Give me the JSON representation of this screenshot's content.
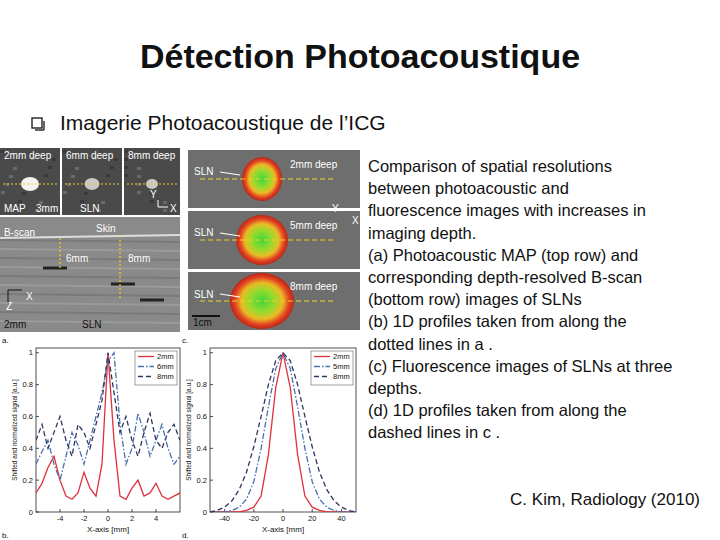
{
  "header": {
    "title": "Détection Photoacoustique"
  },
  "bullet": "Imagerie Photoacoustique de l’ICG",
  "caption": [
    "Comparison of spatial resolutions",
    "between photoacoustic and",
    "fluorescence images with increases in",
    "imaging depth.",
    "(a) Photoacoustic MAP (top row) and",
    "corresponding depth-resolved B-scan",
    "(bottom row) images of SLNs",
    "(b) 1D profiles taken from along the",
    "dotted lines in a .",
    "(c) Fluorescence images of SLNs at three",
    "depths.",
    "(d) 1D profiles taken from along the",
    "dashed lines in c ."
  ],
  "citation": "C. Kim, Radiology (2010)",
  "panel_a": {
    "labels": [
      "2mm deep",
      "6mm deep",
      "8mm deep",
      "MAP",
      "3mm",
      "SLN",
      "B-scan",
      "Skin",
      "6mm",
      "8mm",
      "2mm",
      "SLN",
      "Y",
      "X",
      "X",
      "Z"
    ]
  },
  "panel_c": {
    "labels": [
      "SLN",
      "2mm deep",
      "SLN",
      "5mm deep",
      "SLN",
      "8mm deep",
      "1cm",
      "Y",
      "X"
    ]
  },
  "panel_letters": [
    "a.",
    "b.",
    "c.",
    "d."
  ],
  "chart_data": [
    {
      "type": "line",
      "x_label": "X-axis [mm]",
      "y_label": "Shifted and normalized signal [a.u.]",
      "x": [
        -6,
        -5.5,
        -5,
        -4.5,
        -4,
        -3.5,
        -3,
        -2.5,
        -2,
        -1.5,
        -1,
        -0.5,
        0,
        0.5,
        1,
        1.5,
        2,
        2.5,
        3,
        3.5,
        4,
        4.5,
        5,
        5.5,
        6
      ],
      "series": [
        {
          "name": "2mm",
          "color": "#e0303a",
          "line_style": "solid",
          "values": [
            0.12,
            0.18,
            0.28,
            0.35,
            0.2,
            0.1,
            0.08,
            0.12,
            0.25,
            0.15,
            0.1,
            0.3,
            1.0,
            0.45,
            0.1,
            0.08,
            0.15,
            0.2,
            0.1,
            0.12,
            0.18,
            0.1,
            0.08,
            0.1,
            0.12
          ]
        },
        {
          "name": "6mm",
          "color": "#4a6fb0",
          "line_style": "dashdot",
          "values": [
            0.3,
            0.38,
            0.45,
            0.3,
            0.2,
            0.35,
            0.5,
            0.42,
            0.3,
            0.45,
            0.6,
            0.75,
            0.95,
            1.0,
            0.55,
            0.3,
            0.4,
            0.62,
            0.5,
            0.35,
            0.45,
            0.55,
            0.4,
            0.3,
            0.35
          ]
        },
        {
          "name": "8mm",
          "color": "#2e3560",
          "line_style": "dashed",
          "values": [
            0.45,
            0.55,
            0.4,
            0.5,
            0.6,
            0.45,
            0.35,
            0.55,
            0.5,
            0.4,
            0.55,
            0.7,
            1.0,
            0.75,
            0.5,
            0.6,
            0.45,
            0.35,
            0.5,
            0.62,
            0.45,
            0.4,
            0.5,
            0.55,
            0.45
          ]
        }
      ],
      "xlim": [
        -6,
        6
      ],
      "xticks": [
        -4,
        -2,
        0,
        2,
        4
      ],
      "ylim": [
        0,
        1.03
      ],
      "yticks": [
        0,
        0.2,
        0.4,
        0.6,
        0.8,
        1
      ],
      "legend": "upper right"
    },
    {
      "type": "line",
      "x_label": "X-axis [mm]",
      "y_label": "Shifted and normalized signal [a.u.]",
      "x": [
        -50,
        -45,
        -40,
        -35,
        -30,
        -25,
        -20,
        -15,
        -10,
        -5,
        0,
        5,
        10,
        15,
        20,
        25,
        30,
        35,
        40,
        45,
        50
      ],
      "series": [
        {
          "name": "2mm",
          "color": "#e0303a",
          "line_style": "solid",
          "values": [
            0,
            0,
            0,
            0,
            0,
            0.01,
            0.03,
            0.1,
            0.36,
            0.78,
            1.0,
            0.78,
            0.36,
            0.1,
            0.03,
            0.01,
            0,
            0,
            0,
            0,
            0
          ]
        },
        {
          "name": "5mm",
          "color": "#4a6fb0",
          "line_style": "dashdot",
          "values": [
            0,
            0,
            0,
            0.01,
            0.03,
            0.08,
            0.19,
            0.4,
            0.66,
            0.9,
            1.0,
            0.9,
            0.66,
            0.4,
            0.19,
            0.08,
            0.03,
            0.01,
            0,
            0,
            0
          ]
        },
        {
          "name": "8mm",
          "color": "#2e3560",
          "line_style": "dashed",
          "values": [
            0,
            0.01,
            0.03,
            0.07,
            0.14,
            0.25,
            0.41,
            0.6,
            0.8,
            0.95,
            1.0,
            0.95,
            0.8,
            0.6,
            0.41,
            0.25,
            0.14,
            0.07,
            0.03,
            0.01,
            0
          ]
        }
      ],
      "xlim": [
        -50,
        50
      ],
      "xticks": [
        -40,
        -20,
        0,
        20,
        40
      ],
      "ylim": [
        0,
        1.03
      ],
      "yticks": [
        0,
        0.2,
        0.4,
        0.6,
        0.8,
        1
      ],
      "legend": "upper right"
    }
  ]
}
